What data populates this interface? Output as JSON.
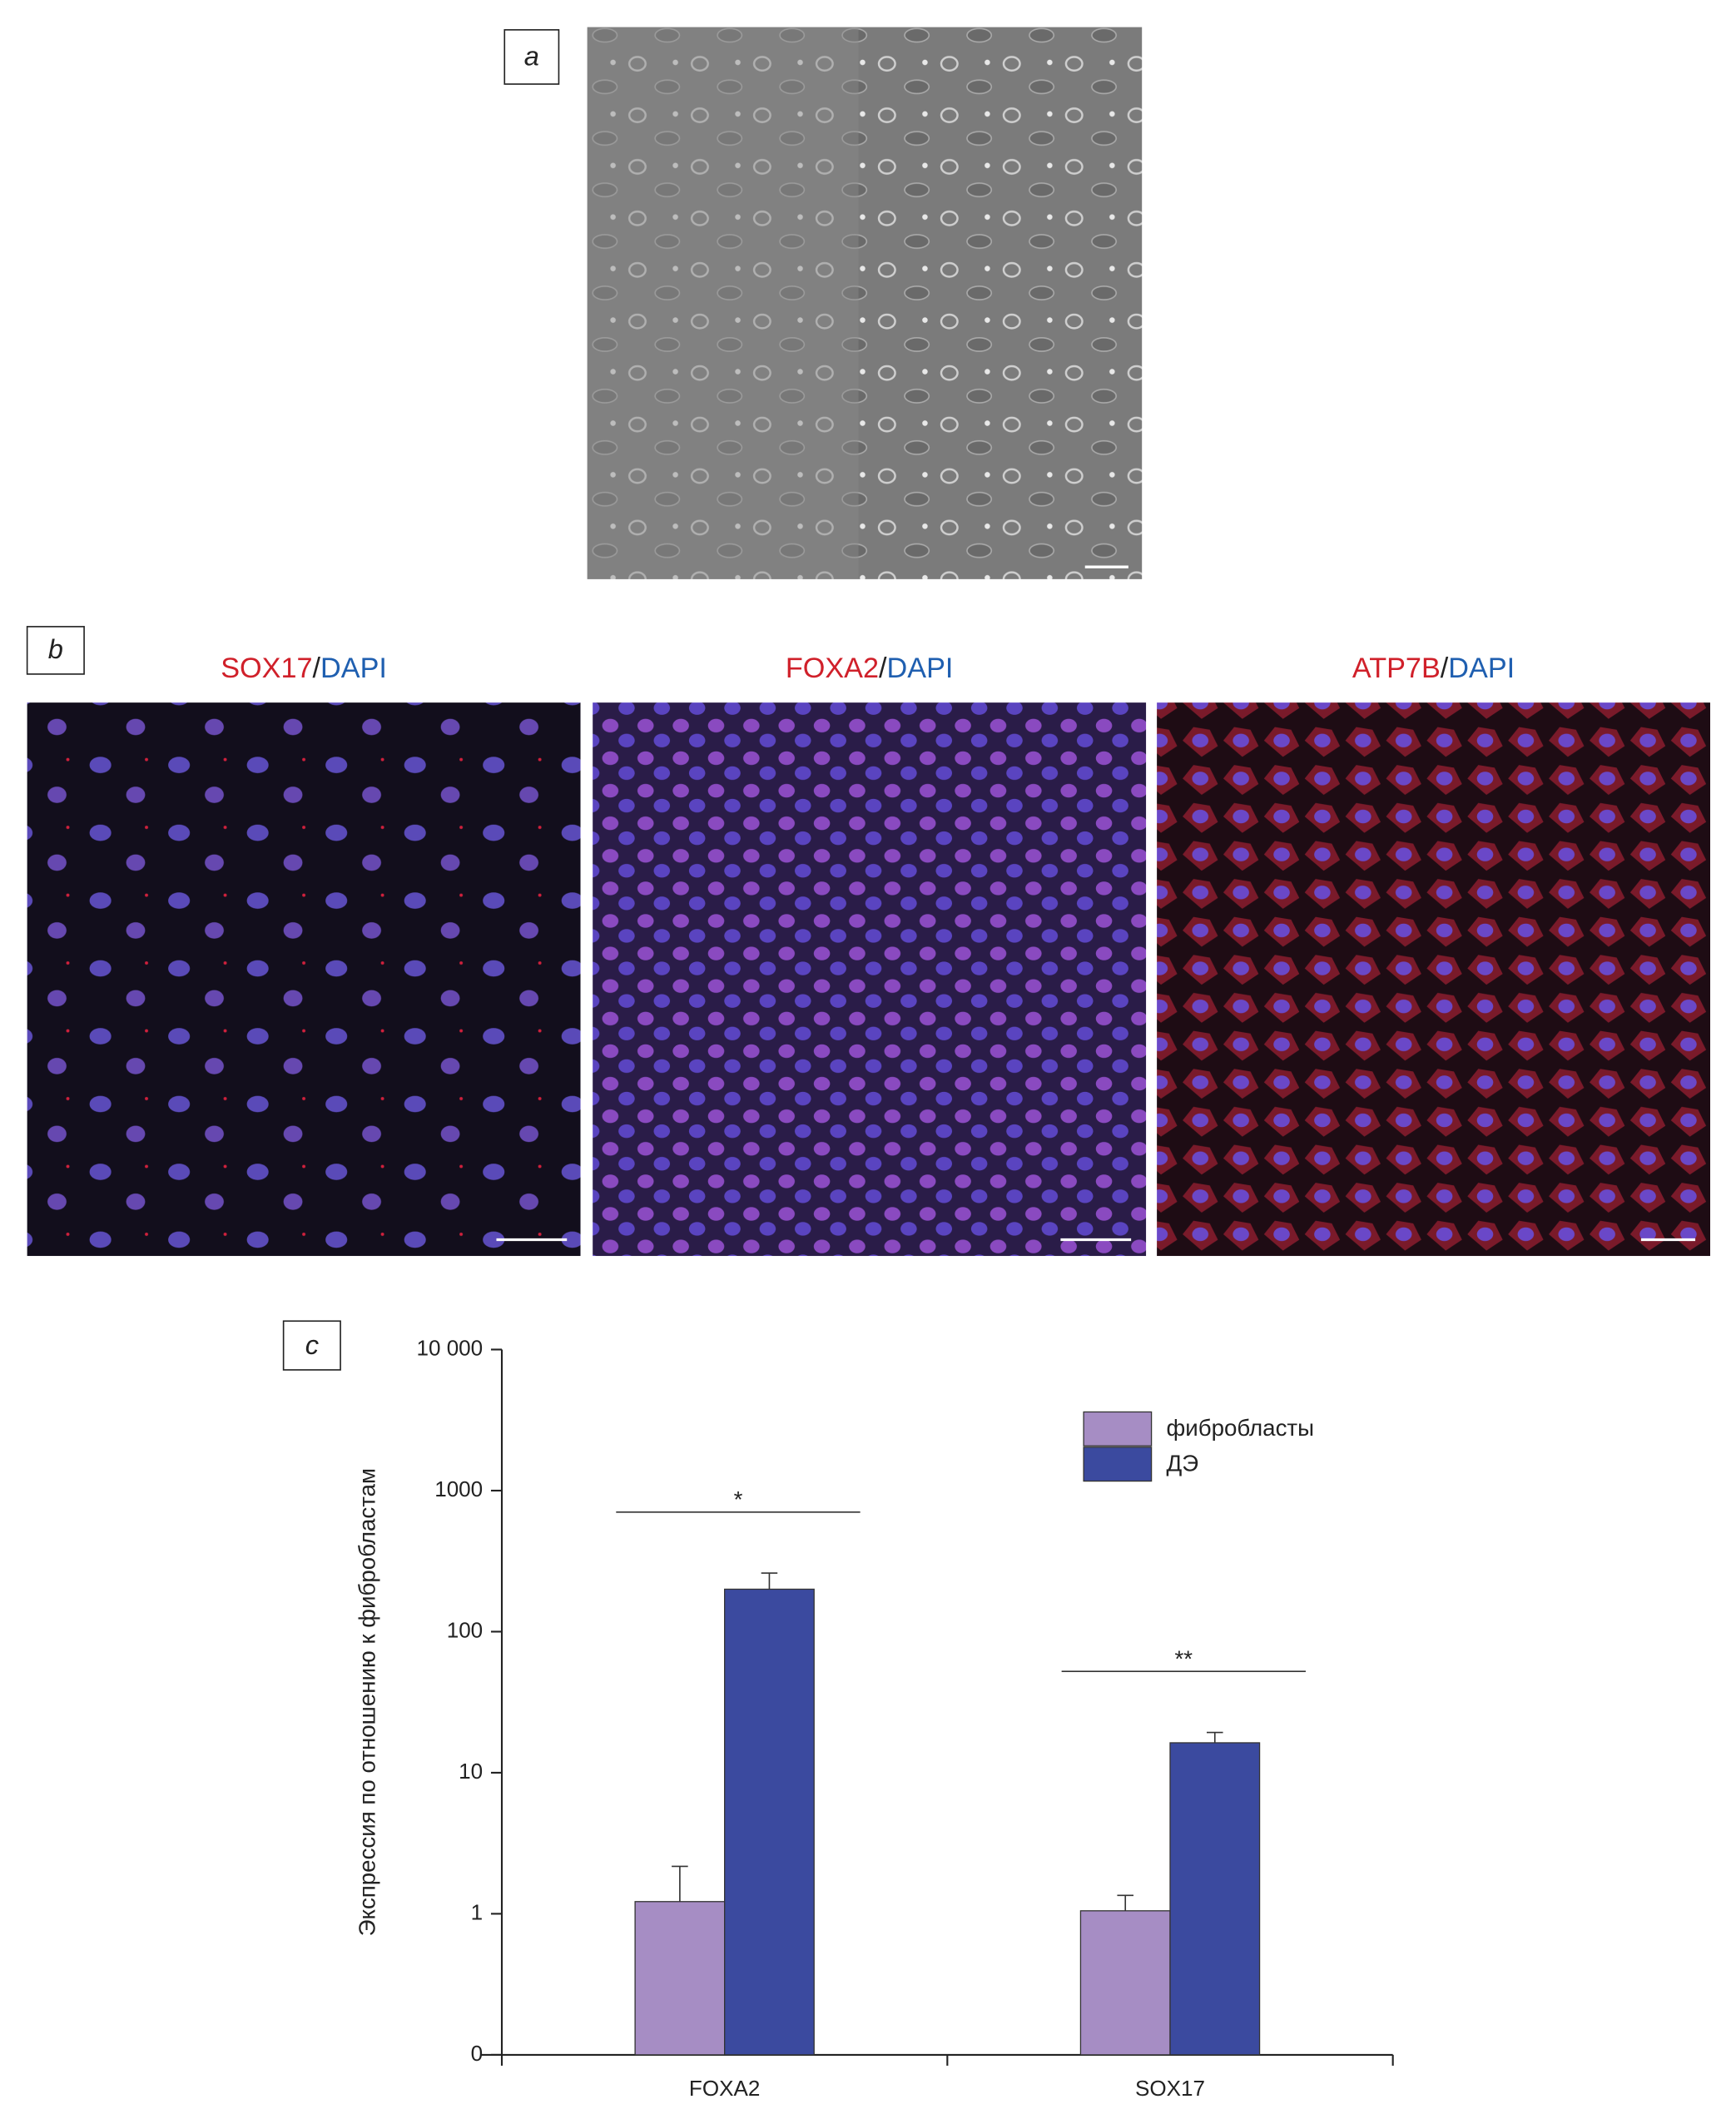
{
  "panel_labels": [
    "a",
    "b",
    "c"
  ],
  "image_titles": [
    [
      "SOX17",
      "/",
      "DAPI"
    ],
    [
      "FOXA2",
      "/",
      "DAPI"
    ],
    [
      "ATP7B",
      "/",
      "DAPI"
    ]
  ],
  "chart_data": {
    "type": "bar",
    "ylabel": "Экспрессия по отношению к фибробластам",
    "categories": [
      "FOXA2",
      "SOX17"
    ],
    "series": [
      {
        "name": "фибробласты",
        "color": "#a68dc4",
        "values": [
          1.22,
          1.05
        ],
        "errors": [
          0.95,
          0.3
        ]
      },
      {
        "name": "ДЭ",
        "color": "#3b4a9f",
        "values": [
          200,
          16.3
        ],
        "errors": [
          60,
          3
        ]
      }
    ],
    "ylim": [
      0.1,
      10000
    ],
    "yticks": [
      {
        "value": 0.1,
        "label": "0"
      },
      1,
      10,
      100,
      1000,
      {
        "value": 10000,
        "label": "10 000"
      }
    ],
    "log_scale": true,
    "legend": "upper right",
    "annotations": [
      "*",
      "**"
    ]
  }
}
